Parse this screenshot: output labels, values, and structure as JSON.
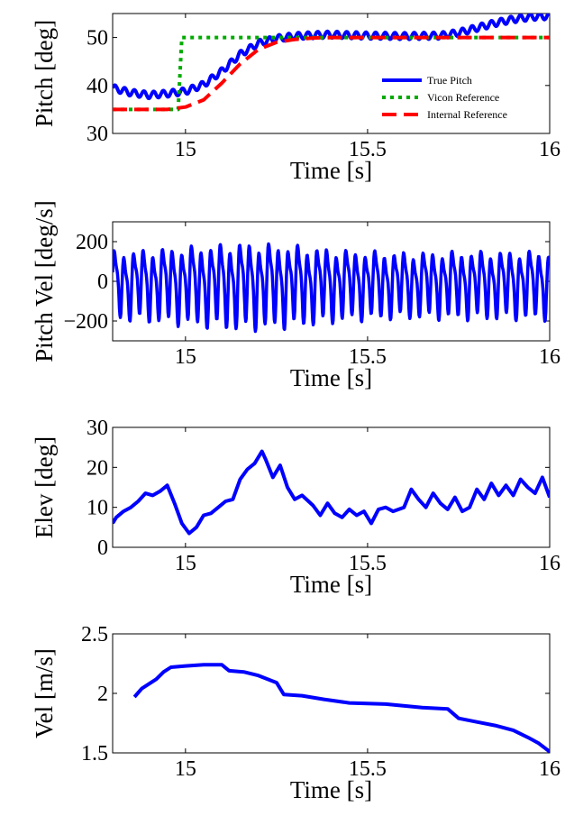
{
  "chart_data": [
    {
      "type": "line",
      "xlabel": "Time [s]",
      "ylabel": "Pitch [deg]",
      "xlim": [
        14.8,
        16.0
      ],
      "ylim": [
        30,
        55
      ],
      "xticks": [
        15,
        15.5,
        16
      ],
      "xtick_labels": [
        "15",
        "15.5",
        "16"
      ],
      "yticks": [
        30,
        40,
        50
      ],
      "ytick_labels": [
        "30",
        "40",
        "50"
      ],
      "legend": {
        "placement": "bottom-right"
      },
      "series": [
        {
          "name": "True Pitch",
          "color": "#0000ff",
          "style": "solid-oscillating",
          "x": [
            14.8,
            14.85,
            14.9,
            14.95,
            15.0,
            15.05,
            15.1,
            15.15,
            15.2,
            15.25,
            15.3,
            15.35,
            15.4,
            15.5,
            15.6,
            15.7,
            15.75,
            15.8,
            15.85,
            15.9,
            15.95,
            16.0
          ],
          "y": [
            39.5,
            38.5,
            38.0,
            38.3,
            38.8,
            40.2,
            43.0,
            46.5,
            48.8,
            49.8,
            50.3,
            50.5,
            50.6,
            50.4,
            50.3,
            50.4,
            51.0,
            52.0,
            53.0,
            53.8,
            54.3,
            54.5
          ]
        },
        {
          "name": "Vicon Reference",
          "color": "#00aa00",
          "style": "dotted",
          "x": [
            14.8,
            14.98,
            14.99,
            16.0
          ],
          "y": [
            35,
            35,
            50,
            50
          ]
        },
        {
          "name": "Internal Reference",
          "color": "#ff0000",
          "style": "dashed",
          "x": [
            14.8,
            14.95,
            15.0,
            15.05,
            15.1,
            15.15,
            15.2,
            15.25,
            15.3,
            15.35,
            15.4,
            15.5,
            16.0
          ],
          "y": [
            35,
            35,
            35.5,
            37.0,
            40.5,
            44.5,
            47.5,
            49.0,
            49.6,
            49.9,
            50.0,
            50.0,
            50.0
          ]
        }
      ]
    },
    {
      "type": "line",
      "xlabel": "Time [s]",
      "ylabel": "Pitch Vel [deg/s]",
      "xlim": [
        14.8,
        16.0
      ],
      "ylim": [
        -300,
        300
      ],
      "xticks": [
        15,
        15.5,
        16
      ],
      "xtick_labels": [
        "15",
        "15.5",
        "16"
      ],
      "yticks": [
        -200,
        0,
        200
      ],
      "ytick_labels": [
        "−200",
        "0",
        "200"
      ],
      "series": [
        {
          "color": "#0000ff",
          "note_oscillation": {
            "period_s": 0.0265,
            "amplitude": [
              175,
              200,
              225,
              210,
              180,
              170,
              175,
              175
            ],
            "amplitude_at_x": [
              14.8,
              15.0,
              15.15,
              15.3,
              15.45,
              15.6,
              15.8,
              16.0
            ]
          }
        }
      ]
    },
    {
      "type": "line",
      "xlabel": "Time [s]",
      "ylabel": "Elev [deg]",
      "xlim": [
        14.8,
        16.0
      ],
      "ylim": [
        0,
        30
      ],
      "xticks": [
        15,
        15.5,
        16
      ],
      "xtick_labels": [
        "15",
        "15.5",
        "16"
      ],
      "yticks": [
        0,
        10,
        20,
        30
      ],
      "ytick_labels": [
        "0",
        "10",
        "20",
        "30"
      ],
      "series": [
        {
          "color": "#0000ff",
          "x": [
            14.8,
            14.81,
            14.83,
            14.85,
            14.87,
            14.89,
            14.91,
            14.93,
            14.95,
            14.97,
            14.99,
            15.01,
            15.03,
            15.05,
            15.07,
            15.09,
            15.11,
            15.13,
            15.15,
            15.17,
            15.19,
            15.21,
            15.22,
            15.24,
            15.26,
            15.28,
            15.3,
            15.32,
            15.35,
            15.37,
            15.39,
            15.41,
            15.43,
            15.45,
            15.47,
            15.49,
            15.51,
            15.53,
            15.55,
            15.57,
            15.6,
            15.62,
            15.64,
            15.66,
            15.68,
            15.7,
            15.72,
            15.74,
            15.76,
            15.78,
            15.8,
            15.82,
            15.84,
            15.86,
            15.88,
            15.9,
            15.92,
            15.94,
            15.96,
            15.98,
            16.0
          ],
          "y": [
            6.0,
            7.5,
            9.0,
            10.0,
            11.5,
            13.5,
            13.0,
            14.0,
            15.5,
            11.0,
            6.0,
            3.5,
            5.0,
            8.0,
            8.5,
            10.0,
            11.5,
            12.0,
            17.0,
            19.5,
            21.0,
            24.0,
            22.0,
            17.5,
            20.5,
            15.0,
            12.0,
            13.0,
            10.5,
            8.0,
            11.0,
            8.5,
            7.5,
            9.5,
            8.0,
            9.0,
            6.0,
            9.5,
            10.0,
            9.0,
            10.0,
            14.5,
            12.0,
            10.0,
            13.5,
            11.0,
            9.5,
            12.5,
            9.0,
            10.0,
            14.5,
            12.0,
            16.0,
            13.0,
            15.5,
            13.0,
            17.0,
            15.0,
            13.5,
            17.5,
            12.5
          ]
        }
      ]
    },
    {
      "type": "line",
      "xlabel": "Time [s]",
      "ylabel": "Vel [m/s]",
      "xlim": [
        14.8,
        16.0
      ],
      "ylim": [
        1.5,
        2.5
      ],
      "xticks": [
        15,
        15.5,
        16
      ],
      "xtick_labels": [
        "15",
        "15.5",
        "16"
      ],
      "yticks": [
        1.5,
        2.0,
        2.5
      ],
      "ytick_labels": [
        "1.5",
        "2",
        "2.5"
      ],
      "series": [
        {
          "color": "#0000ff",
          "x": [
            14.86,
            14.88,
            14.9,
            14.92,
            14.94,
            14.96,
            15.0,
            15.05,
            15.1,
            15.12,
            15.16,
            15.2,
            15.25,
            15.27,
            15.32,
            15.38,
            15.45,
            15.55,
            15.65,
            15.72,
            15.75,
            15.8,
            15.85,
            15.9,
            15.94,
            15.97,
            16.0
          ],
          "y": [
            1.97,
            2.04,
            2.08,
            2.12,
            2.18,
            2.22,
            2.23,
            2.24,
            2.24,
            2.19,
            2.18,
            2.15,
            2.09,
            1.99,
            1.98,
            1.95,
            1.92,
            1.91,
            1.88,
            1.87,
            1.79,
            1.76,
            1.73,
            1.69,
            1.63,
            1.58,
            1.51
          ]
        }
      ]
    }
  ]
}
